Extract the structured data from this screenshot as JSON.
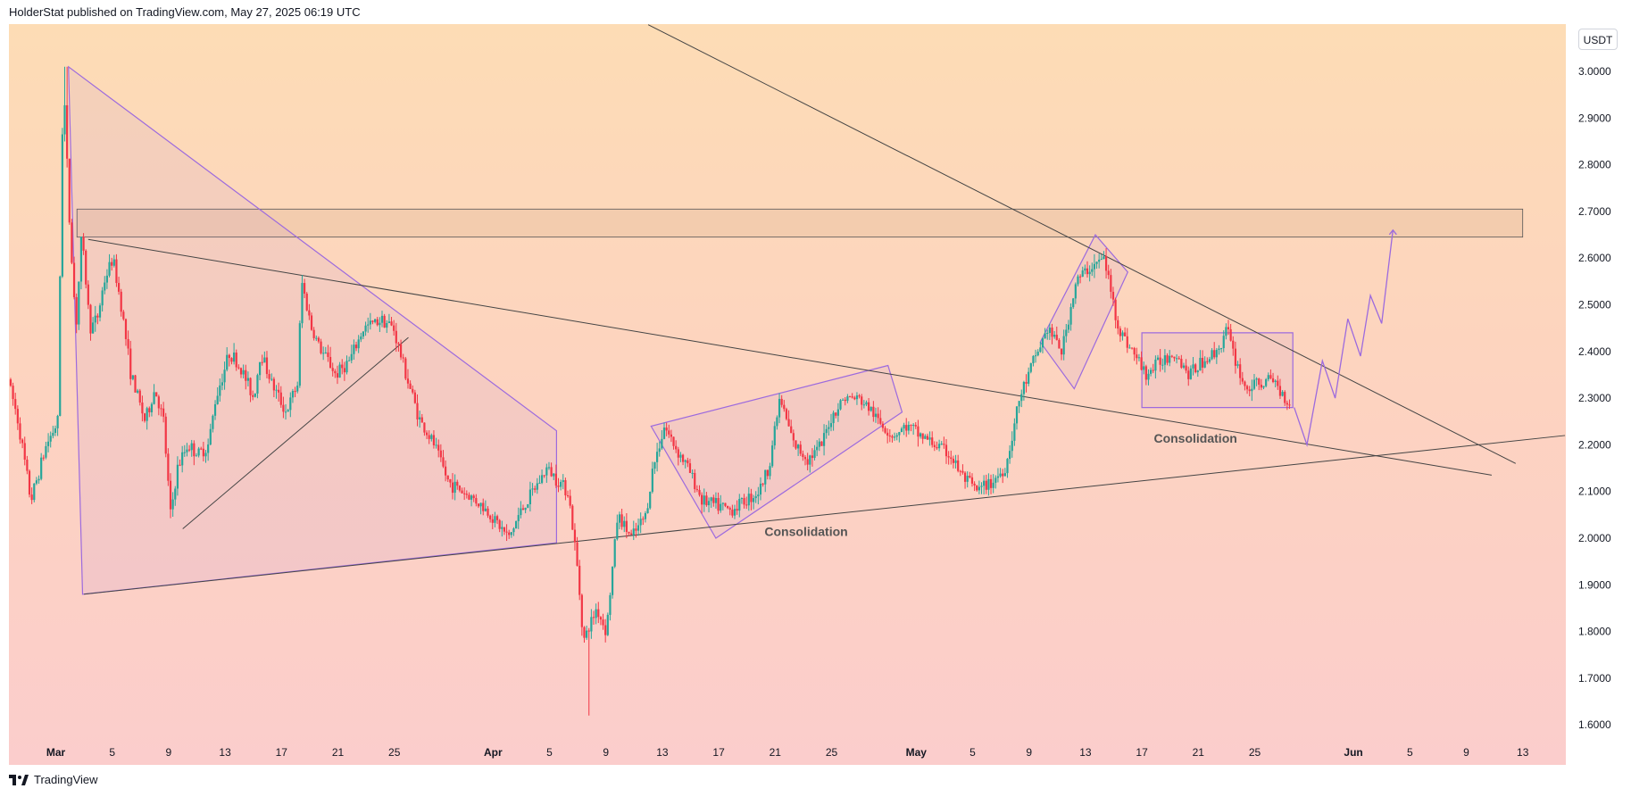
{
  "header": {
    "text": "HolderStat published on TradingView.com, May 27, 2025 06:19 UTC"
  },
  "ticker": {
    "currency": "USDT"
  },
  "footer": {
    "brand": "TradingView",
    "logo_icon": "tradingview-logo-icon"
  },
  "colors": {
    "up": "#26a69a",
    "down": "#f23645",
    "pattern": "#9c6ade",
    "line": "#444444"
  },
  "chart_data": {
    "type": "candlestick",
    "y_axis": {
      "min": 1.55,
      "max": 3.08,
      "ticks": [
        "3.0000",
        "2.9000",
        "2.8000",
        "2.7000",
        "2.6000",
        "2.5000",
        "2.4000",
        "2.3000",
        "2.2000",
        "2.1000",
        "2.0000",
        "1.9000",
        "1.8000",
        "1.7000",
        "1.6000"
      ]
    },
    "x_axis": {
      "labels": [
        {
          "day": 0,
          "label": "Mar"
        },
        {
          "day": 4,
          "label": "5"
        },
        {
          "day": 8,
          "label": "9"
        },
        {
          "day": 12,
          "label": "13"
        },
        {
          "day": 16,
          "label": "17"
        },
        {
          "day": 20,
          "label": "21"
        },
        {
          "day": 24,
          "label": "25"
        },
        {
          "day": 31,
          "label": "Apr"
        },
        {
          "day": 35,
          "label": "5"
        },
        {
          "day": 39,
          "label": "9"
        },
        {
          "day": 43,
          "label": "13"
        },
        {
          "day": 47,
          "label": "17"
        },
        {
          "day": 51,
          "label": "21"
        },
        {
          "day": 55,
          "label": "25"
        },
        {
          "day": 61,
          "label": "May"
        },
        {
          "day": 65,
          "label": "5"
        },
        {
          "day": 69,
          "label": "9"
        },
        {
          "day": 73,
          "label": "13"
        },
        {
          "day": 77,
          "label": "17"
        },
        {
          "day": 81,
          "label": "21"
        },
        {
          "day": 85,
          "label": "25"
        },
        {
          "day": 92,
          "label": "Jun"
        },
        {
          "day": 96,
          "label": "5"
        },
        {
          "day": 100,
          "label": "9"
        },
        {
          "day": 104,
          "label": "13"
        }
      ]
    },
    "price_path": [
      [
        -3.2,
        2.34
      ],
      [
        -2.5,
        2.25
      ],
      [
        -1.6,
        2.08
      ],
      [
        -0.5,
        2.2
      ],
      [
        0.3,
        2.25
      ],
      [
        0.7,
        3.0
      ],
      [
        1.1,
        2.7
      ],
      [
        1.6,
        2.45
      ],
      [
        2.0,
        2.65
      ],
      [
        2.6,
        2.45
      ],
      [
        3.1,
        2.47
      ],
      [
        3.6,
        2.55
      ],
      [
        4.2,
        2.6
      ],
      [
        4.8,
        2.5
      ],
      [
        5.5,
        2.35
      ],
      [
        6.0,
        2.3
      ],
      [
        6.5,
        2.25
      ],
      [
        7.2,
        2.32
      ],
      [
        7.8,
        2.25
      ],
      [
        8.3,
        2.05
      ],
      [
        8.8,
        2.15
      ],
      [
        9.5,
        2.2
      ],
      [
        10.3,
        2.18
      ],
      [
        11,
        2.2
      ],
      [
        11.5,
        2.3
      ],
      [
        12.5,
        2.4
      ],
      [
        13.5,
        2.35
      ],
      [
        14.2,
        2.3
      ],
      [
        14.7,
        2.4
      ],
      [
        15.5,
        2.33
      ],
      [
        16.5,
        2.27
      ],
      [
        17.3,
        2.33
      ],
      [
        17.6,
        2.55
      ],
      [
        18.3,
        2.45
      ],
      [
        19,
        2.4
      ],
      [
        19.5,
        2.38
      ],
      [
        20,
        2.35
      ],
      [
        21,
        2.38
      ],
      [
        22,
        2.45
      ],
      [
        23.3,
        2.47
      ],
      [
        24.1,
        2.45
      ],
      [
        25,
        2.35
      ],
      [
        26,
        2.25
      ],
      [
        27,
        2.2
      ],
      [
        28,
        2.12
      ],
      [
        29,
        2.1
      ],
      [
        30,
        2.08
      ],
      [
        31,
        2.05
      ],
      [
        32.3,
        2.0
      ],
      [
        33,
        2.05
      ],
      [
        34,
        2.1
      ],
      [
        35,
        2.15
      ],
      [
        36.5,
        2.1
      ],
      [
        37.1,
        1.95
      ],
      [
        37.6,
        1.78
      ],
      [
        38.5,
        1.85
      ],
      [
        39.2,
        1.8
      ],
      [
        40,
        2.05
      ],
      [
        41,
        2.0
      ],
      [
        42,
        2.05
      ],
      [
        42.5,
        2.15
      ],
      [
        43.3,
        2.24
      ],
      [
        44,
        2.2
      ],
      [
        45,
        2.15
      ],
      [
        46,
        2.08
      ],
      [
        47,
        2.07
      ],
      [
        48,
        2.06
      ],
      [
        49,
        2.08
      ],
      [
        50,
        2.1
      ],
      [
        50.7,
        2.15
      ],
      [
        51.5,
        2.3
      ],
      [
        52.5,
        2.2
      ],
      [
        53.5,
        2.17
      ],
      [
        54.5,
        2.2
      ],
      [
        55,
        2.25
      ],
      [
        56,
        2.3
      ],
      [
        57,
        2.3
      ],
      [
        57.8,
        2.28
      ],
      [
        58.5,
        2.25
      ],
      [
        59.5,
        2.22
      ],
      [
        60.5,
        2.24
      ],
      [
        61.5,
        2.22
      ],
      [
        62.5,
        2.2
      ],
      [
        63.5,
        2.18
      ],
      [
        64.5,
        2.13
      ],
      [
        65.5,
        2.1
      ],
      [
        66.5,
        2.12
      ],
      [
        67.5,
        2.15
      ],
      [
        68.5,
        2.3
      ],
      [
        69.5,
        2.38
      ],
      [
        70.5,
        2.45
      ],
      [
        71.5,
        2.4
      ],
      [
        72.5,
        2.55
      ],
      [
        73.5,
        2.58
      ],
      [
        74.5,
        2.6
      ],
      [
        75.5,
        2.45
      ],
      [
        76.5,
        2.4
      ],
      [
        77.5,
        2.35
      ],
      [
        78.5,
        2.38
      ],
      [
        79.5,
        2.4
      ],
      [
        80.5,
        2.35
      ],
      [
        81.5,
        2.38
      ],
      [
        82.5,
        2.4
      ],
      [
        83.2,
        2.45
      ],
      [
        83.6,
        2.4
      ],
      [
        84.5,
        2.32
      ],
      [
        85.5,
        2.33
      ],
      [
        86.5,
        2.34
      ],
      [
        87.5,
        2.29
      ]
    ],
    "projection_path": [
      [
        87.8,
        2.28
      ],
      [
        88.7,
        2.2
      ],
      [
        89.8,
        2.38
      ],
      [
        90.7,
        2.3
      ],
      [
        91.6,
        2.47
      ],
      [
        92.5,
        2.39
      ],
      [
        93.2,
        2.52
      ],
      [
        94.0,
        2.46
      ],
      [
        94.8,
        2.66
      ]
    ],
    "resistance_zone": {
      "x1": 1.5,
      "x2": 104.0,
      "y1": 2.645,
      "y2": 2.705
    },
    "trendlines": [
      {
        "x1": 42.0,
        "y1": 3.1,
        "x2": 103.5,
        "y2": 2.16
      },
      {
        "x1": 2.3,
        "y1": 2.64,
        "x2": 101.8,
        "y2": 2.135
      },
      {
        "x1": 2.0,
        "y1": 1.88,
        "x2": 107.0,
        "y2": 2.22
      },
      {
        "x1": 9.0,
        "y1": 2.02,
        "x2": 25.0,
        "y2": 2.43
      }
    ],
    "patterns": [
      {
        "type": "triangle",
        "points": [
          [
            0.9,
            3.01
          ],
          [
            1.9,
            1.88
          ],
          [
            35.5,
            1.99
          ],
          [
            35.5,
            2.23
          ]
        ]
      },
      {
        "type": "channel",
        "points": [
          [
            42.2,
            2.24
          ],
          [
            46.8,
            2.0
          ],
          [
            60.0,
            2.27
          ],
          [
            59.0,
            2.37
          ]
        ]
      },
      {
        "type": "channel",
        "points": [
          [
            69.8,
            2.42
          ],
          [
            72.2,
            2.32
          ],
          [
            76.0,
            2.57
          ],
          [
            73.7,
            2.65
          ]
        ]
      },
      {
        "type": "rectangle",
        "points": [
          [
            77.0,
            2.44
          ],
          [
            87.7,
            2.44
          ],
          [
            87.7,
            2.28
          ],
          [
            77.0,
            2.28
          ]
        ]
      }
    ],
    "annotations": [
      {
        "text": "Consolidation",
        "x": 53.2,
        "y": 2.005
      },
      {
        "text": "Consolidation",
        "x": 80.8,
        "y": 2.205
      }
    ],
    "bottom_wick_low": 1.62
  }
}
